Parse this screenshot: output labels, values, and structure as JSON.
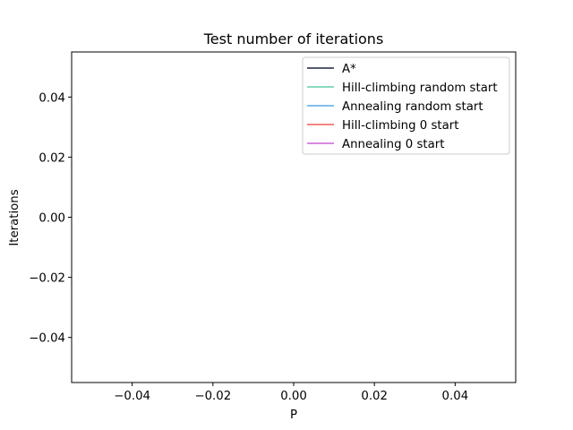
{
  "chart_data": {
    "type": "line",
    "title": "Test number of iterations",
    "xlabel": "P",
    "ylabel": "Iterations",
    "xlim": [
      -0.055,
      0.055
    ],
    "ylim": [
      -0.055,
      0.055
    ],
    "xticks": [
      -0.04,
      -0.02,
      0.0,
      0.02,
      0.04
    ],
    "xtick_labels": [
      "−0.04",
      "−0.02",
      "0.00",
      "0.02",
      "0.04"
    ],
    "yticks": [
      -0.04,
      -0.02,
      0.0,
      0.02,
      0.04
    ],
    "ytick_labels": [
      "−0.04",
      "−0.02",
      "0.00",
      "0.02",
      "0.04"
    ],
    "grid": false,
    "legend_position": "top-right",
    "series": [
      {
        "name": "A*",
        "color": "#1f2041",
        "x": [],
        "y": []
      },
      {
        "name": "Hill-climbing random start",
        "color": "#66cdaa",
        "x": [],
        "y": []
      },
      {
        "name": "Annealing random start",
        "color": "#5aa9e6",
        "x": [],
        "y": []
      },
      {
        "name": "Hill-climbing 0 start",
        "color": "#f25f5c",
        "x": [],
        "y": []
      },
      {
        "name": "Annealing 0 start",
        "color": "#c764d6",
        "x": [],
        "y": []
      }
    ]
  }
}
